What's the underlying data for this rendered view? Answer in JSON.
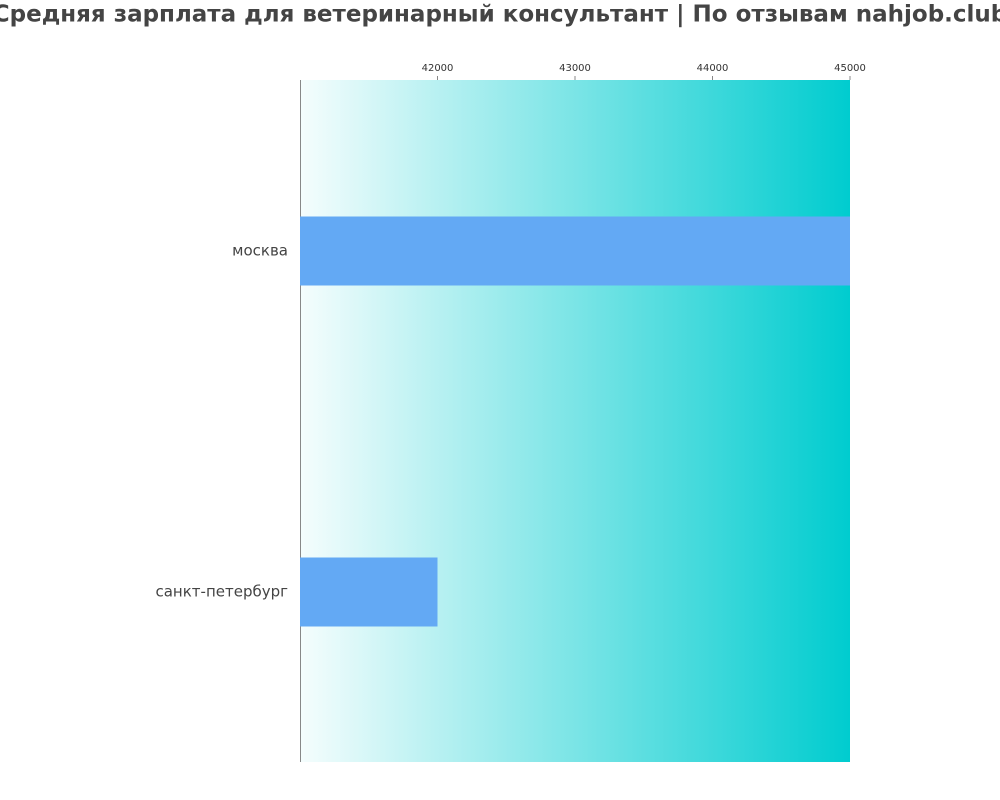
{
  "chart_data": {
    "type": "barh",
    "title": "Средняя зарплата для ветеринарный консультант | По отзывам nahjob.club",
    "categories": [
      "москва",
      "санкт-петербург"
    ],
    "values": [
      45000,
      42000
    ],
    "color": "#63a9f4",
    "xlim": [
      41000,
      45000
    ],
    "xticks": [
      42000,
      43000,
      44000,
      45000
    ]
  }
}
